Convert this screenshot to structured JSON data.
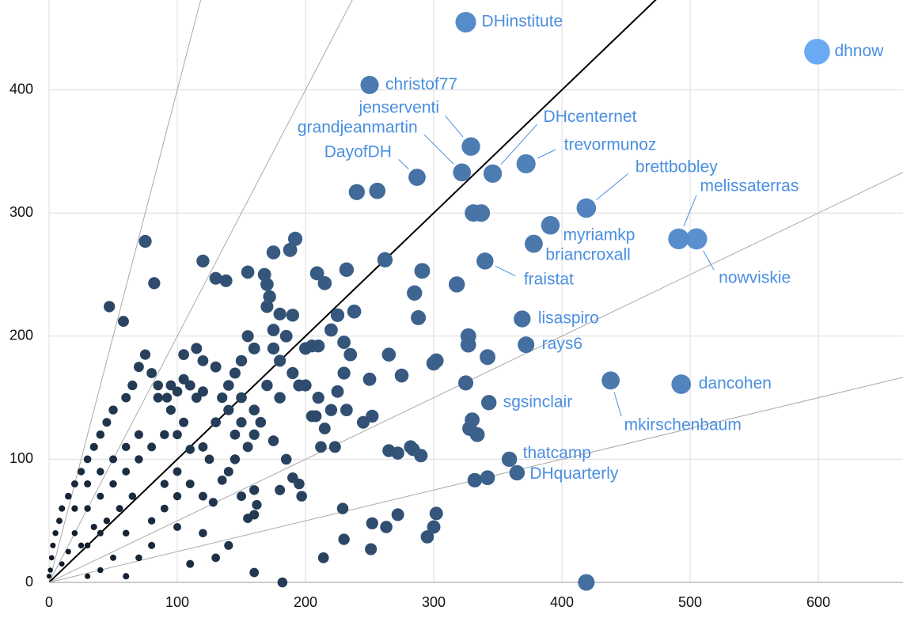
{
  "chart_data": {
    "type": "scatter",
    "xlim": [
      0,
      666
    ],
    "ylim": [
      0,
      473
    ],
    "xticks": [
      0,
      100,
      200,
      300,
      400,
      500,
      600
    ],
    "yticks": [
      0,
      100,
      200,
      300,
      400
    ],
    "grid": true,
    "reference_lines": [
      {
        "slope": 4,
        "color": "#aaaaaa"
      },
      {
        "slope": 2,
        "color": "#aaaaaa"
      },
      {
        "slope": 1,
        "color": "#000000"
      },
      {
        "slope": 0.5,
        "color": "#aaaaaa"
      },
      {
        "slope": 0.25,
        "color": "#aaaaaa"
      }
    ],
    "labels": [
      "DHinstitute",
      "dhnow",
      "christof77",
      "jenserventi",
      "grandjeanmartin",
      "DayofDH",
      "DHcenternet",
      "trevormunoz",
      "brettbobley",
      "melissaterras",
      "nowviskie",
      "myriamkp",
      "briancroxall",
      "fraistat",
      "lisaspiro",
      "rays6",
      "dancohen",
      "mkirschenbaum",
      "sgsinclair",
      "thatcamp",
      "DHquarterly"
    ],
    "x": [
      325,
      599,
      250,
      329,
      322,
      287,
      346,
      372,
      419,
      491,
      505,
      391,
      378,
      340,
      369,
      372,
      493,
      438,
      343,
      359,
      365,
      240,
      256,
      331,
      337,
      262,
      291,
      318,
      232,
      209,
      215,
      120,
      130,
      138,
      155,
      175,
      188,
      192,
      75,
      82,
      47,
      58,
      168,
      170,
      172,
      170,
      180,
      190,
      175,
      185,
      200,
      205,
      210,
      225,
      220,
      230,
      235,
      238,
      250,
      252,
      232,
      245,
      275,
      265,
      285,
      288,
      300,
      302,
      325,
      327,
      327,
      342,
      330,
      328,
      334,
      282,
      265,
      272,
      290,
      284,
      332,
      342,
      229,
      252,
      263,
      272,
      302,
      300,
      295,
      230,
      251,
      214,
      160,
      182,
      419,
      208,
      212,
      223,
      185,
      190,
      195,
      197,
      180,
      160,
      150,
      162,
      155,
      160,
      128,
      135,
      140,
      145,
      125,
      110,
      100,
      105,
      95,
      92,
      100,
      110,
      115,
      85,
      80,
      75,
      70,
      65,
      60,
      50,
      45,
      40,
      35,
      30,
      25,
      20,
      15,
      10,
      8,
      5,
      3,
      2,
      1,
      0,
      20,
      30,
      40,
      50,
      60,
      70,
      80,
      90,
      55,
      65,
      45,
      35,
      25,
      15,
      10,
      50,
      60,
      70,
      40,
      30,
      20,
      30,
      40,
      60,
      80,
      90,
      100,
      110,
      120,
      100,
      80,
      70,
      50,
      40,
      30,
      120,
      140,
      130,
      110,
      60,
      90,
      100,
      120,
      130,
      140,
      150,
      160,
      150,
      170,
      180,
      190,
      200,
      210,
      220,
      85,
      95,
      105,
      120,
      135,
      145,
      155,
      165,
      175,
      160,
      115,
      105,
      120,
      130,
      140,
      150,
      160,
      155,
      145,
      175,
      180,
      195,
      205,
      215,
      225,
      230
    ],
    "y": [
      455,
      431,
      404,
      354,
      333,
      329,
      332,
      340,
      304,
      279,
      279,
      290,
      275,
      261,
      214,
      193,
      161,
      164,
      146,
      100,
      89,
      317,
      318,
      300,
      300,
      262,
      253,
      242,
      254,
      251,
      243,
      261,
      247,
      245,
      252,
      268,
      270,
      279,
      277,
      243,
      224,
      212,
      250,
      242,
      232,
      224,
      218,
      217,
      205,
      200,
      190,
      192,
      192,
      217,
      205,
      195,
      185,
      220,
      165,
      135,
      140,
      130,
      168,
      185,
      235,
      215,
      178,
      180,
      162,
      200,
      193,
      183,
      132,
      125,
      120,
      110,
      107,
      105,
      103,
      108,
      83,
      85,
      60,
      48,
      45,
      55,
      56,
      45,
      37,
      35,
      27,
      20,
      8,
      0,
      0,
      135,
      110,
      110,
      100,
      85,
      80,
      70,
      75,
      75,
      70,
      63,
      52,
      55,
      65,
      83,
      90,
      100,
      100,
      108,
      120,
      130,
      140,
      150,
      155,
      160,
      150,
      160,
      170,
      185,
      175,
      160,
      150,
      140,
      130,
      120,
      110,
      100,
      90,
      80,
      70,
      60,
      50,
      40,
      30,
      20,
      10,
      5,
      40,
      60,
      70,
      80,
      90,
      100,
      110,
      120,
      60,
      70,
      50,
      45,
      30,
      25,
      15,
      100,
      110,
      120,
      90,
      80,
      60,
      30,
      40,
      40,
      50,
      60,
      70,
      80,
      70,
      45,
      30,
      20,
      20,
      10,
      5,
      40,
      30,
      20,
      15,
      5,
      80,
      90,
      110,
      130,
      140,
      150,
      140,
      130,
      160,
      150,
      170,
      160,
      150,
      140,
      150,
      160,
      165,
      155,
      150,
      120,
      110,
      130,
      115,
      120,
      190,
      185,
      180,
      175,
      160,
      180,
      190,
      200,
      170,
      190,
      180,
      160,
      135,
      125,
      155,
      170
    ]
  }
}
